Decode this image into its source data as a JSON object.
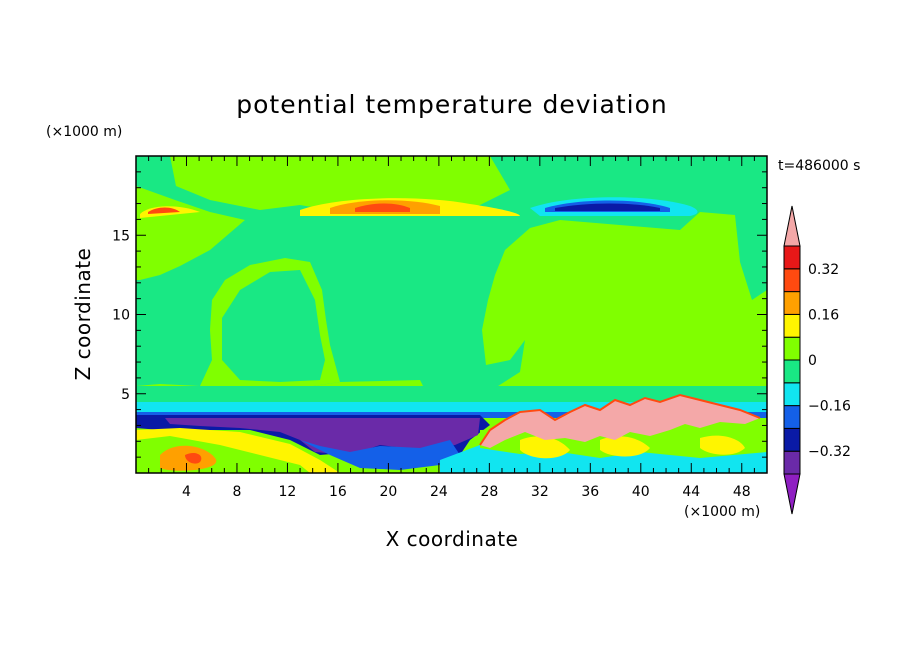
{
  "chart_data": {
    "type": "heatmap",
    "title": "potential temperature deviation",
    "xlabel": "X coordinate",
    "ylabel": "Z coordinate",
    "x_unit": "(×1000 m)",
    "y_unit": "(×1000 m)",
    "time_label": "t=486000 s",
    "xlim": [
      0,
      50
    ],
    "ylim": [
      0,
      20
    ],
    "x_ticks": [
      4,
      8,
      12,
      16,
      20,
      24,
      28,
      32,
      36,
      40,
      44,
      48
    ],
    "y_ticks": [
      5,
      10,
      15
    ],
    "colorbar": {
      "levels": [
        -0.4,
        -0.32,
        -0.24,
        -0.16,
        -0.08,
        0,
        0.08,
        0.16,
        0.24,
        0.32,
        0.4
      ],
      "tick_values": [
        0.32,
        0.16,
        0,
        -0.16,
        -0.32
      ],
      "tick_labels": [
        "0.32",
        "0.16",
        "0",
        "−0.16",
        "−0.32"
      ],
      "colors": [
        "#8f1fc2",
        "#6a2aa8",
        "#0a1aa6",
        "#1460e8",
        "#11e5f0",
        "#19e884",
        "#80ff00",
        "#fff500",
        "#ffa000",
        "#ff4a10",
        "#e81818",
        "#f4a8a8"
      ]
    },
    "regions_note": "Field is near zero (green) aloft with a cool layer near z=3.5 km and warm pink plume at x=28-48 km, z=2-4 km."
  }
}
